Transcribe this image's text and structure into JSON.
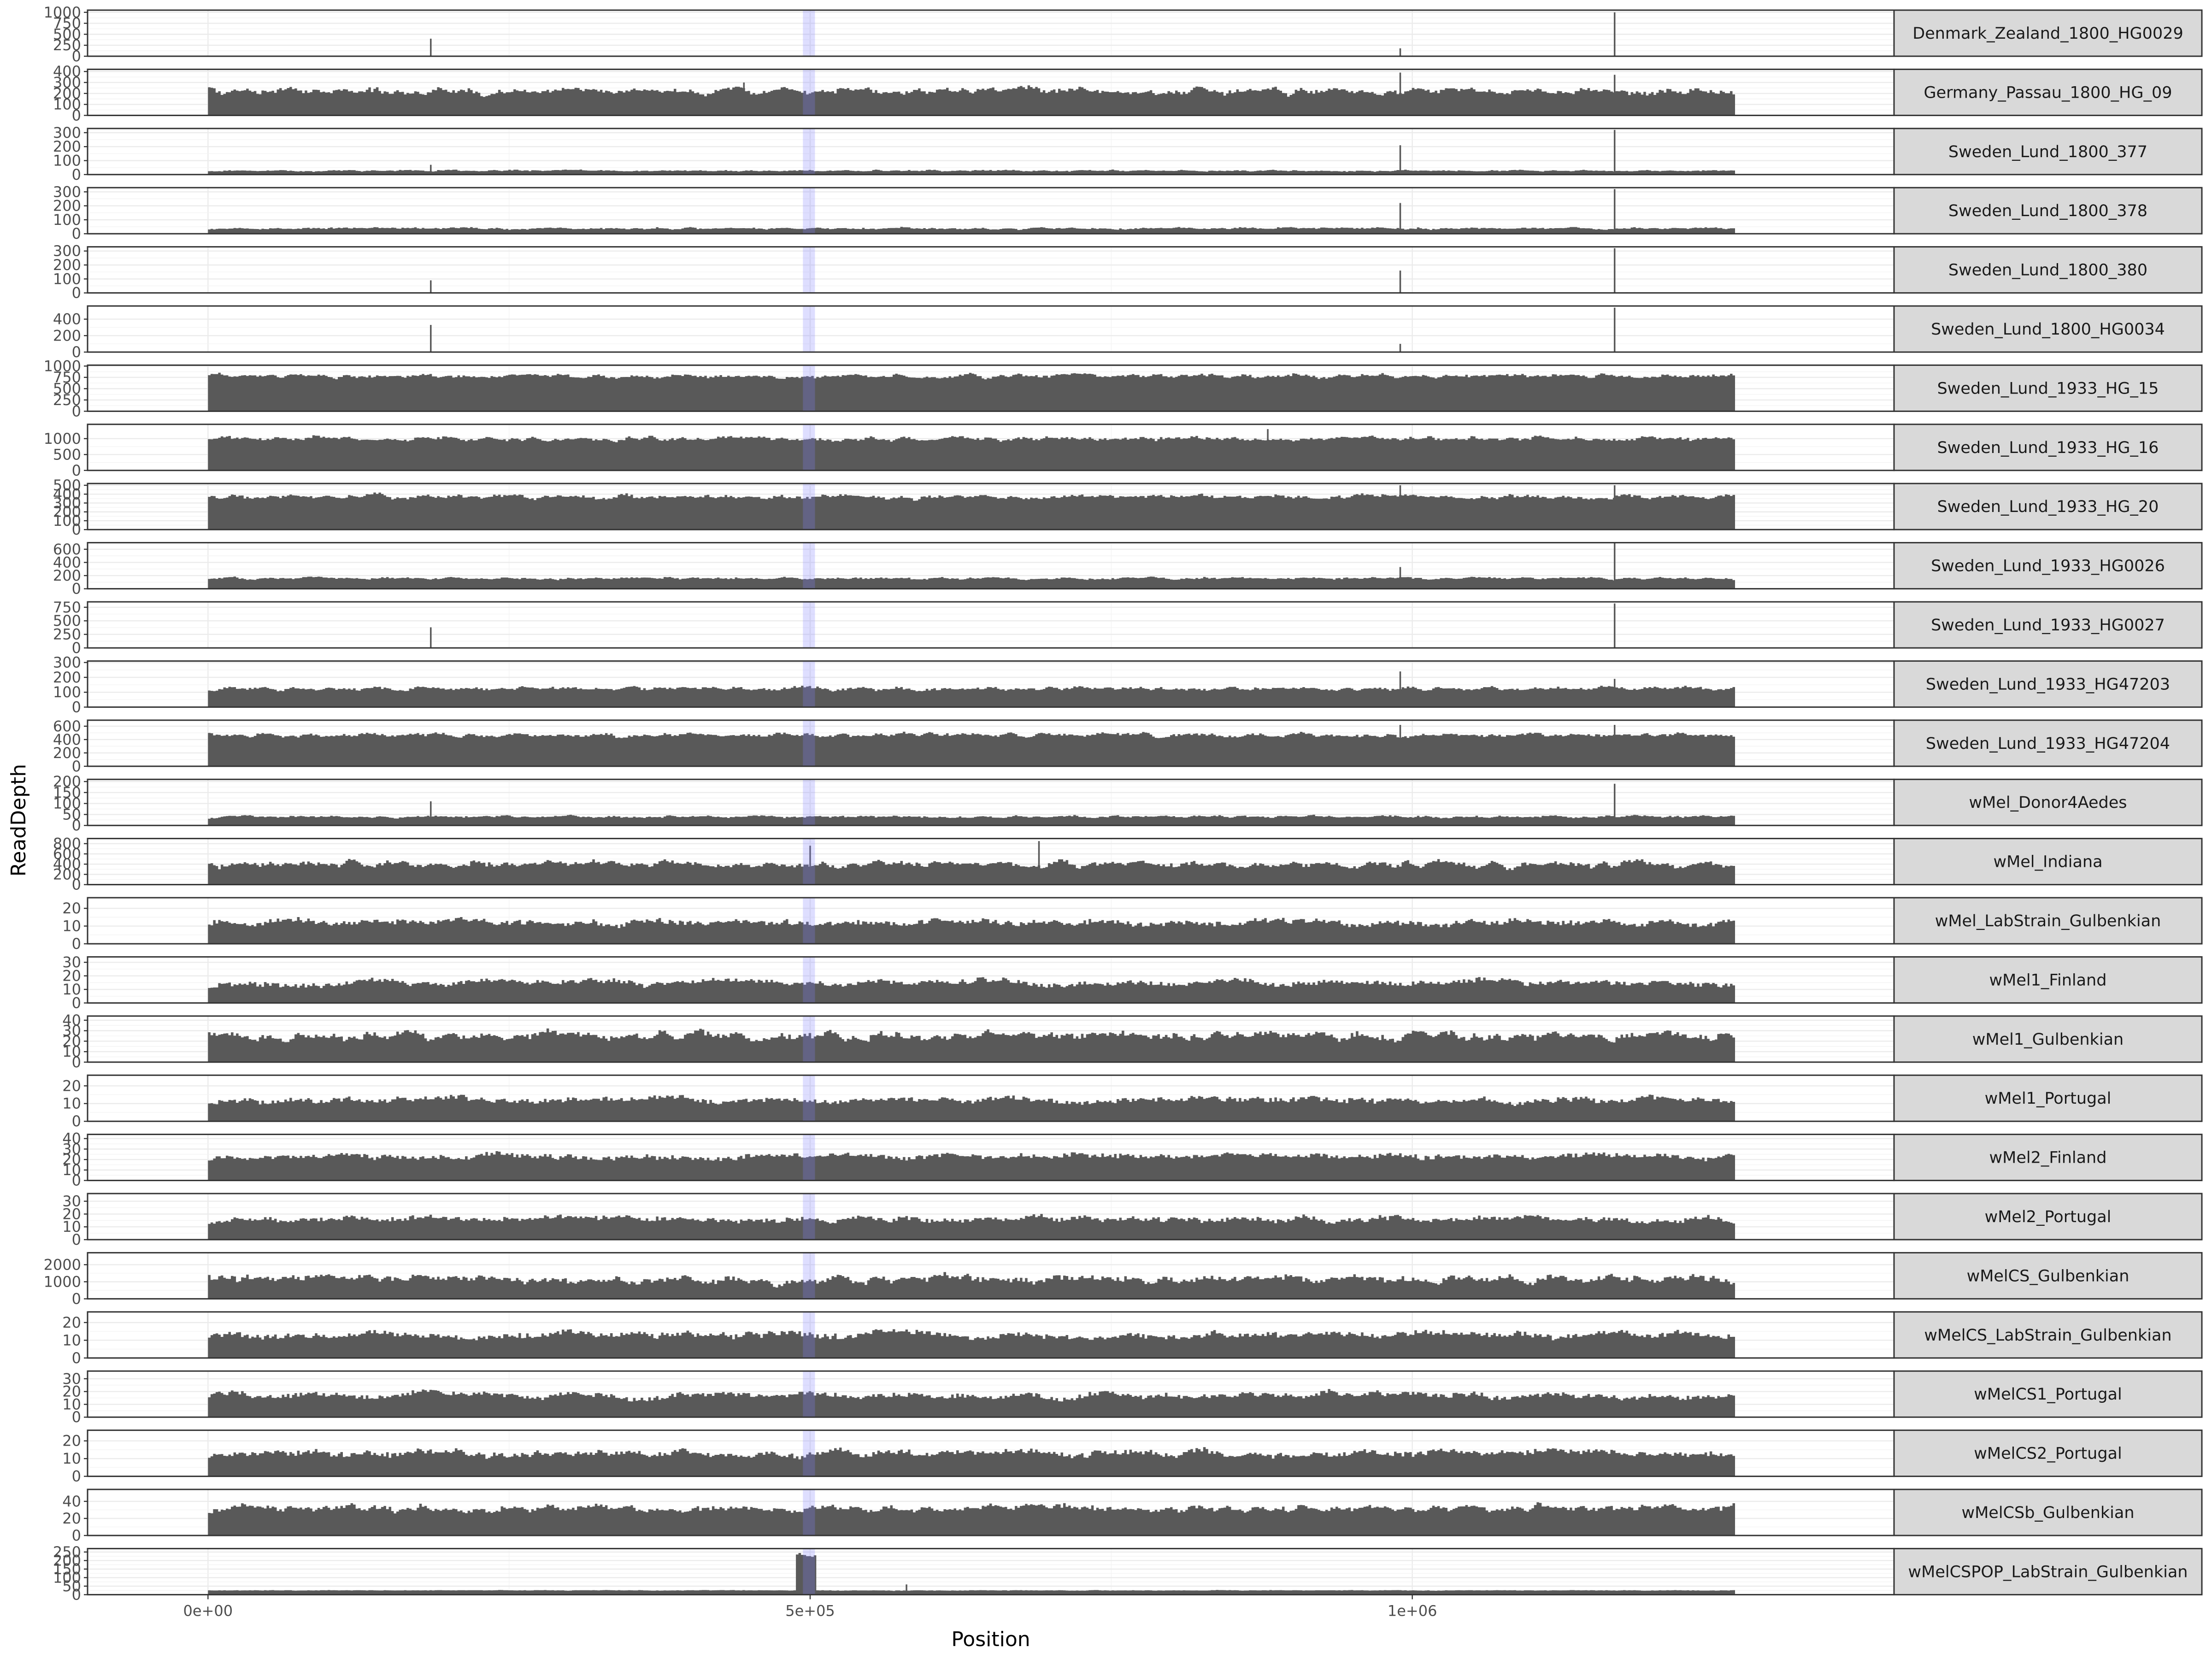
{
  "chart_data": {
    "type": "area",
    "title": "",
    "xlabel": "Position",
    "ylabel": "ReadDepth",
    "xlim": [
      -100000,
      1400000
    ],
    "x_tick_values": [
      0,
      500000,
      1000000
    ],
    "x_tick_labels": [
      "0e+00",
      "5e+05",
      "1e+06"
    ],
    "genome_length": 1268000,
    "highlight_region": {
      "start": 494000,
      "end": 504000,
      "color": "#7f7fff"
    },
    "grid": true,
    "facet_strip_position": "right",
    "bar_color": "#595959",
    "panels": [
      {
        "sample": "Denmark_Zealand_1800_HG0029",
        "ylim": [
          0,
          1050
        ],
        "yticks": [
          0,
          250,
          500,
          750,
          1000
        ],
        "baseline_depth": 5,
        "noise": 0.3,
        "smoothness": 2,
        "spikes": [
          {
            "x": 185000,
            "depth": 400
          },
          {
            "x": 990000,
            "depth": 180
          },
          {
            "x": 1168000,
            "depth": 1000
          }
        ]
      },
      {
        "sample": "Germany_Passau_1800_HG_09",
        "ylim": [
          0,
          420
        ],
        "yticks": [
          0,
          100,
          200,
          300,
          400
        ],
        "baseline_depth": 220,
        "noise": 0.25,
        "smoothness": 2,
        "spikes": [
          {
            "x": 445000,
            "depth": 300
          },
          {
            "x": 990000,
            "depth": 390
          },
          {
            "x": 1168000,
            "depth": 370
          }
        ]
      },
      {
        "sample": "Sweden_Lund_1800_377",
        "ylim": [
          0,
          330
        ],
        "yticks": [
          0,
          100,
          200,
          300
        ],
        "baseline_depth": 28,
        "noise": 0.35,
        "smoothness": 2,
        "spikes": [
          {
            "x": 185000,
            "depth": 70
          },
          {
            "x": 990000,
            "depth": 210
          },
          {
            "x": 1168000,
            "depth": 320
          }
        ]
      },
      {
        "sample": "Sweden_Lund_1800_378",
        "ylim": [
          0,
          330
        ],
        "yticks": [
          0,
          100,
          200,
          300
        ],
        "baseline_depth": 38,
        "noise": 0.35,
        "smoothness": 2,
        "spikes": [
          {
            "x": 990000,
            "depth": 220
          },
          {
            "x": 1168000,
            "depth": 320
          }
        ]
      },
      {
        "sample": "Sweden_Lund_1800_380",
        "ylim": [
          0,
          330
        ],
        "yticks": [
          0,
          100,
          200,
          300
        ],
        "baseline_depth": 3,
        "noise": 0.35,
        "smoothness": 2,
        "spikes": [
          {
            "x": 185000,
            "depth": 90
          },
          {
            "x": 990000,
            "depth": 160
          },
          {
            "x": 1168000,
            "depth": 320
          }
        ]
      },
      {
        "sample": "Sweden_Lund_1800_HG0034",
        "ylim": [
          0,
          560
        ],
        "yticks": [
          0,
          200,
          400
        ],
        "baseline_depth": 6,
        "noise": 0.35,
        "smoothness": 2,
        "spikes": [
          {
            "x": 185000,
            "depth": 330
          },
          {
            "x": 990000,
            "depth": 100
          },
          {
            "x": 1168000,
            "depth": 540
          }
        ]
      },
      {
        "sample": "Sweden_Lund_1933_HG_15",
        "ylim": [
          0,
          1020
        ],
        "yticks": [
          0,
          250,
          500,
          750,
          1000
        ],
        "baseline_depth": 780,
        "noise": 0.1,
        "smoothness": 2,
        "spikes": []
      },
      {
        "sample": "Sweden_Lund_1933_HG_16",
        "ylim": [
          0,
          1450
        ],
        "yticks": [
          0,
          500,
          1000
        ],
        "baseline_depth": 1000,
        "noise": 0.12,
        "smoothness": 2,
        "spikes": [
          {
            "x": 880000,
            "depth": 1300
          }
        ]
      },
      {
        "sample": "Sweden_Lund_1933_HG_20",
        "ylim": [
          0,
          520
        ],
        "yticks": [
          0,
          100,
          200,
          300,
          400,
          500
        ],
        "baseline_depth": 370,
        "noise": 0.12,
        "smoothness": 2,
        "spikes": [
          {
            "x": 990000,
            "depth": 500
          },
          {
            "x": 1168000,
            "depth": 500
          }
        ]
      },
      {
        "sample": "Sweden_Lund_1933_HG0026",
        "ylim": [
          0,
          700
        ],
        "yticks": [
          0,
          200,
          400,
          600
        ],
        "baseline_depth": 160,
        "noise": 0.2,
        "smoothness": 2,
        "spikes": [
          {
            "x": 990000,
            "depth": 330
          },
          {
            "x": 1168000,
            "depth": 690
          }
        ]
      },
      {
        "sample": "Sweden_Lund_1933_HG0027",
        "ylim": [
          0,
          850
        ],
        "yticks": [
          0,
          250,
          500,
          750
        ],
        "baseline_depth": 4,
        "noise": 0.4,
        "smoothness": 2,
        "spikes": [
          {
            "x": 185000,
            "depth": 380
          },
          {
            "x": 1168000,
            "depth": 820
          }
        ]
      },
      {
        "sample": "Sweden_Lund_1933_HG47203",
        "ylim": [
          0,
          310
        ],
        "yticks": [
          0,
          100,
          200,
          300
        ],
        "baseline_depth": 125,
        "noise": 0.18,
        "smoothness": 2,
        "spikes": [
          {
            "x": 990000,
            "depth": 240
          },
          {
            "x": 1168000,
            "depth": 190
          }
        ]
      },
      {
        "sample": "Sweden_Lund_1933_HG47204",
        "ylim": [
          0,
          690
        ],
        "yticks": [
          0,
          200,
          400,
          600
        ],
        "baseline_depth": 470,
        "noise": 0.12,
        "smoothness": 2,
        "spikes": [
          {
            "x": 990000,
            "depth": 620
          },
          {
            "x": 1168000,
            "depth": 620
          }
        ]
      },
      {
        "sample": "wMel_Donor4Aedes",
        "ylim": [
          0,
          210
        ],
        "yticks": [
          0,
          50,
          100,
          150,
          200
        ],
        "baseline_depth": 40,
        "noise": 0.25,
        "smoothness": 2,
        "spikes": [
          {
            "x": 185000,
            "depth": 110
          },
          {
            "x": 1168000,
            "depth": 190
          }
        ]
      },
      {
        "sample": "wMel_Indiana",
        "ylim": [
          0,
          900
        ],
        "yticks": [
          0,
          200,
          400,
          600,
          800
        ],
        "baseline_depth": 400,
        "noise": 0.3,
        "smoothness": 2,
        "spikes": [
          {
            "x": 690000,
            "depth": 850
          },
          {
            "x": 500000,
            "depth": 760
          }
        ]
      },
      {
        "sample": "wMel_LabStrain_Gulbenkian",
        "ylim": [
          0,
          26
        ],
        "yticks": [
          0,
          10,
          20
        ],
        "baseline_depth": 12,
        "noise": 0.45,
        "smoothness": 6,
        "spikes": []
      },
      {
        "sample": "wMel1_Finland",
        "ylim": [
          0,
          34
        ],
        "yticks": [
          0,
          10,
          20,
          30
        ],
        "baseline_depth": 15,
        "noise": 0.42,
        "smoothness": 6,
        "spikes": []
      },
      {
        "sample": "wMel1_Gulbenkian",
        "ylim": [
          0,
          44
        ],
        "yticks": [
          0,
          10,
          20,
          30,
          40
        ],
        "baseline_depth": 25,
        "noise": 0.3,
        "smoothness": 2,
        "spikes": []
      },
      {
        "sample": "wMel1_Portugal",
        "ylim": [
          0,
          26
        ],
        "yticks": [
          0,
          10,
          20
        ],
        "baseline_depth": 12,
        "noise": 0.42,
        "smoothness": 6,
        "spikes": []
      },
      {
        "sample": "wMel2_Finland",
        "ylim": [
          0,
          44
        ],
        "yticks": [
          0,
          10,
          20,
          30,
          40
        ],
        "baseline_depth": 23,
        "noise": 0.35,
        "smoothness": 6,
        "spikes": []
      },
      {
        "sample": "wMel2_Portugal",
        "ylim": [
          0,
          36
        ],
        "yticks": [
          0,
          10,
          20,
          30
        ],
        "baseline_depth": 16,
        "noise": 0.4,
        "smoothness": 5,
        "spikes": []
      },
      {
        "sample": "wMelCS_Gulbenkian",
        "ylim": [
          0,
          2700
        ],
        "yticks": [
          0,
          1000,
          2000
        ],
        "baseline_depth": 1150,
        "noise": 0.45,
        "smoothness": 3,
        "spikes": []
      },
      {
        "sample": "wMelCS_LabStrain_Gulbenkian",
        "ylim": [
          0,
          26
        ],
        "yticks": [
          0,
          10,
          20
        ],
        "baseline_depth": 13,
        "noise": 0.42,
        "smoothness": 6,
        "spikes": []
      },
      {
        "sample": "wMelCS1_Portugal",
        "ylim": [
          0,
          36
        ],
        "yticks": [
          0,
          10,
          20,
          30
        ],
        "baseline_depth": 17,
        "noise": 0.4,
        "smoothness": 6,
        "spikes": []
      },
      {
        "sample": "wMelCS2_Portugal",
        "ylim": [
          0,
          26
        ],
        "yticks": [
          0,
          10,
          20
        ],
        "baseline_depth": 13,
        "noise": 0.4,
        "smoothness": 5,
        "spikes": []
      },
      {
        "sample": "wMelCSb_Gulbenkian",
        "ylim": [
          0,
          54
        ],
        "yticks": [
          0,
          20,
          40
        ],
        "baseline_depth": 32,
        "noise": 0.22,
        "smoothness": 2,
        "spikes": []
      },
      {
        "sample": "wMelCSPOP_LabStrain_Gulbenkian",
        "ylim": [
          0,
          270
        ],
        "yticks": [
          0,
          50,
          100,
          150,
          200,
          250
        ],
        "baseline_depth": 25,
        "noise": 0.15,
        "smoothness": 4,
        "spikes": [
          {
            "x": 580000,
            "depth": 60
          }
        ],
        "amplified_region": {
          "start": 487000,
          "end": 505000,
          "depth": 240
        }
      }
    ]
  }
}
